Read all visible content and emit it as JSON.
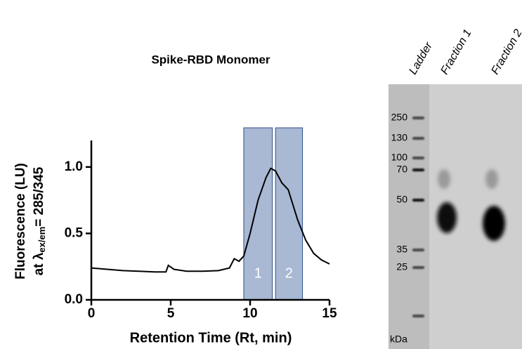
{
  "chart_data": {
    "type": "line",
    "title": "Spike-RBD Monomer",
    "xlabel": "Retention Time (Rt, min)",
    "ylabel": "Fluorescence (LU)",
    "ylabel2": {
      "lead": "at λ",
      "sub": "ex/em",
      "tail": "= 285/345"
    },
    "color": "#000000",
    "x": [
      0,
      1,
      2,
      3,
      4,
      4.7,
      4.85,
      5.2,
      6,
      7,
      8,
      8.7,
      9.0,
      9.3,
      9.6,
      10,
      10.5,
      11,
      11.3,
      11.6,
      12,
      12.4,
      13,
      13.5,
      14,
      14.5,
      15
    ],
    "values": [
      0.24,
      0.23,
      0.22,
      0.215,
      0.21,
      0.21,
      0.26,
      0.23,
      0.215,
      0.215,
      0.22,
      0.24,
      0.31,
      0.29,
      0.33,
      0.5,
      0.75,
      0.92,
      0.99,
      0.97,
      0.88,
      0.83,
      0.6,
      0.45,
      0.35,
      0.3,
      0.27
    ],
    "xlim": [
      0,
      15
    ],
    "xticks": [
      0,
      5,
      10,
      15
    ],
    "ylim": [
      0,
      1.2
    ],
    "yticks": [
      {
        "value": 0,
        "label": "0.0"
      },
      0.5,
      {
        "value": 1,
        "label": "1.0"
      }
    ],
    "fractions": [
      {
        "label": "1",
        "x": [
          9.6,
          11.4
        ]
      },
      {
        "label": "2",
        "x": [
          11.6,
          13.3
        ]
      }
    ],
    "fraction_color": "#a9b8d3"
  },
  "gel": {
    "lanes": [
      "Ladder",
      "Fraction 1",
      "Fraction 2"
    ],
    "markers": [
      "250",
      "130",
      "100",
      "70",
      "50",
      "35",
      "25"
    ],
    "unit": "kDa"
  }
}
